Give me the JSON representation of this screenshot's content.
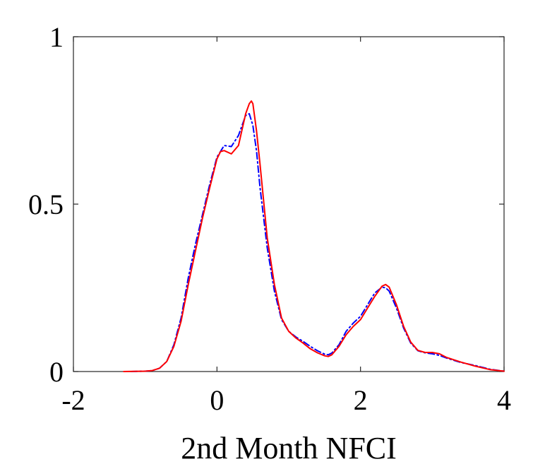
{
  "chart_data": {
    "type": "line",
    "title": "",
    "xlabel": "2nd Month NFCI",
    "ylabel": "",
    "xlim": [
      -2,
      4
    ],
    "ylim": [
      0,
      1
    ],
    "xticks": [
      {
        "value": -2,
        "label": "-2"
      },
      {
        "value": 0,
        "label": "0"
      },
      {
        "value": 2,
        "label": "2"
      },
      {
        "value": 4,
        "label": "4"
      }
    ],
    "yticks": [
      {
        "value": 0,
        "label": "0"
      },
      {
        "value": 0.5,
        "label": "0.5"
      },
      {
        "value": 1,
        "label": "1"
      }
    ],
    "grid": false,
    "legend": "none",
    "series": [
      {
        "color": "#0000ff",
        "line_style": "dash-dot",
        "points": [
          [
            -1.2,
            0.0
          ],
          [
            -1.0,
            0.001
          ],
          [
            -0.9,
            0.003
          ],
          [
            -0.8,
            0.01
          ],
          [
            -0.7,
            0.03
          ],
          [
            -0.6,
            0.08
          ],
          [
            -0.5,
            0.16
          ],
          [
            -0.4,
            0.28
          ],
          [
            -0.3,
            0.38
          ],
          [
            -0.2,
            0.47
          ],
          [
            -0.1,
            0.56
          ],
          [
            0.0,
            0.64
          ],
          [
            0.1,
            0.675
          ],
          [
            0.2,
            0.672
          ],
          [
            0.3,
            0.705
          ],
          [
            0.4,
            0.765
          ],
          [
            0.45,
            0.77
          ],
          [
            0.5,
            0.735
          ],
          [
            0.55,
            0.66
          ],
          [
            0.6,
            0.55
          ],
          [
            0.7,
            0.37
          ],
          [
            0.8,
            0.24
          ],
          [
            0.9,
            0.155
          ],
          [
            1.0,
            0.12
          ],
          [
            1.1,
            0.103
          ],
          [
            1.2,
            0.09
          ],
          [
            1.3,
            0.075
          ],
          [
            1.4,
            0.062
          ],
          [
            1.5,
            0.052
          ],
          [
            1.55,
            0.05
          ],
          [
            1.6,
            0.055
          ],
          [
            1.7,
            0.08
          ],
          [
            1.8,
            0.12
          ],
          [
            1.9,
            0.145
          ],
          [
            2.0,
            0.165
          ],
          [
            2.1,
            0.2
          ],
          [
            2.2,
            0.235
          ],
          [
            2.3,
            0.252
          ],
          [
            2.35,
            0.25
          ],
          [
            2.4,
            0.24
          ],
          [
            2.5,
            0.19
          ],
          [
            2.6,
            0.13
          ],
          [
            2.7,
            0.085
          ],
          [
            2.8,
            0.062
          ],
          [
            2.9,
            0.056
          ],
          [
            3.0,
            0.053
          ],
          [
            3.1,
            0.048
          ],
          [
            3.2,
            0.04
          ],
          [
            3.4,
            0.027
          ],
          [
            3.6,
            0.018
          ],
          [
            3.8,
            0.007
          ],
          [
            4.0,
            0.001
          ]
        ]
      },
      {
        "color": "#ff0000",
        "line_style": "solid",
        "points": [
          [
            -1.3,
            0.0
          ],
          [
            -1.0,
            0.001
          ],
          [
            -0.9,
            0.003
          ],
          [
            -0.8,
            0.01
          ],
          [
            -0.7,
            0.03
          ],
          [
            -0.6,
            0.075
          ],
          [
            -0.5,
            0.15
          ],
          [
            -0.4,
            0.26
          ],
          [
            -0.3,
            0.36
          ],
          [
            -0.2,
            0.46
          ],
          [
            -0.1,
            0.55
          ],
          [
            0.0,
            0.635
          ],
          [
            0.05,
            0.657
          ],
          [
            0.1,
            0.66
          ],
          [
            0.2,
            0.65
          ],
          [
            0.3,
            0.675
          ],
          [
            0.4,
            0.77
          ],
          [
            0.45,
            0.8
          ],
          [
            0.48,
            0.808
          ],
          [
            0.5,
            0.8
          ],
          [
            0.55,
            0.72
          ],
          [
            0.6,
            0.62
          ],
          [
            0.7,
            0.4
          ],
          [
            0.8,
            0.26
          ],
          [
            0.9,
            0.16
          ],
          [
            1.0,
            0.12
          ],
          [
            1.1,
            0.1
          ],
          [
            1.2,
            0.085
          ],
          [
            1.3,
            0.068
          ],
          [
            1.4,
            0.056
          ],
          [
            1.5,
            0.047
          ],
          [
            1.55,
            0.045
          ],
          [
            1.6,
            0.05
          ],
          [
            1.7,
            0.075
          ],
          [
            1.8,
            0.11
          ],
          [
            1.9,
            0.135
          ],
          [
            2.0,
            0.155
          ],
          [
            2.1,
            0.19
          ],
          [
            2.2,
            0.225
          ],
          [
            2.3,
            0.255
          ],
          [
            2.35,
            0.26
          ],
          [
            2.4,
            0.252
          ],
          [
            2.5,
            0.2
          ],
          [
            2.6,
            0.135
          ],
          [
            2.7,
            0.088
          ],
          [
            2.8,
            0.063
          ],
          [
            2.9,
            0.057
          ],
          [
            3.0,
            0.057
          ],
          [
            3.1,
            0.053
          ],
          [
            3.2,
            0.042
          ],
          [
            3.4,
            0.028
          ],
          [
            3.6,
            0.016
          ],
          [
            3.8,
            0.006
          ],
          [
            4.0,
            0.001
          ]
        ]
      }
    ]
  }
}
